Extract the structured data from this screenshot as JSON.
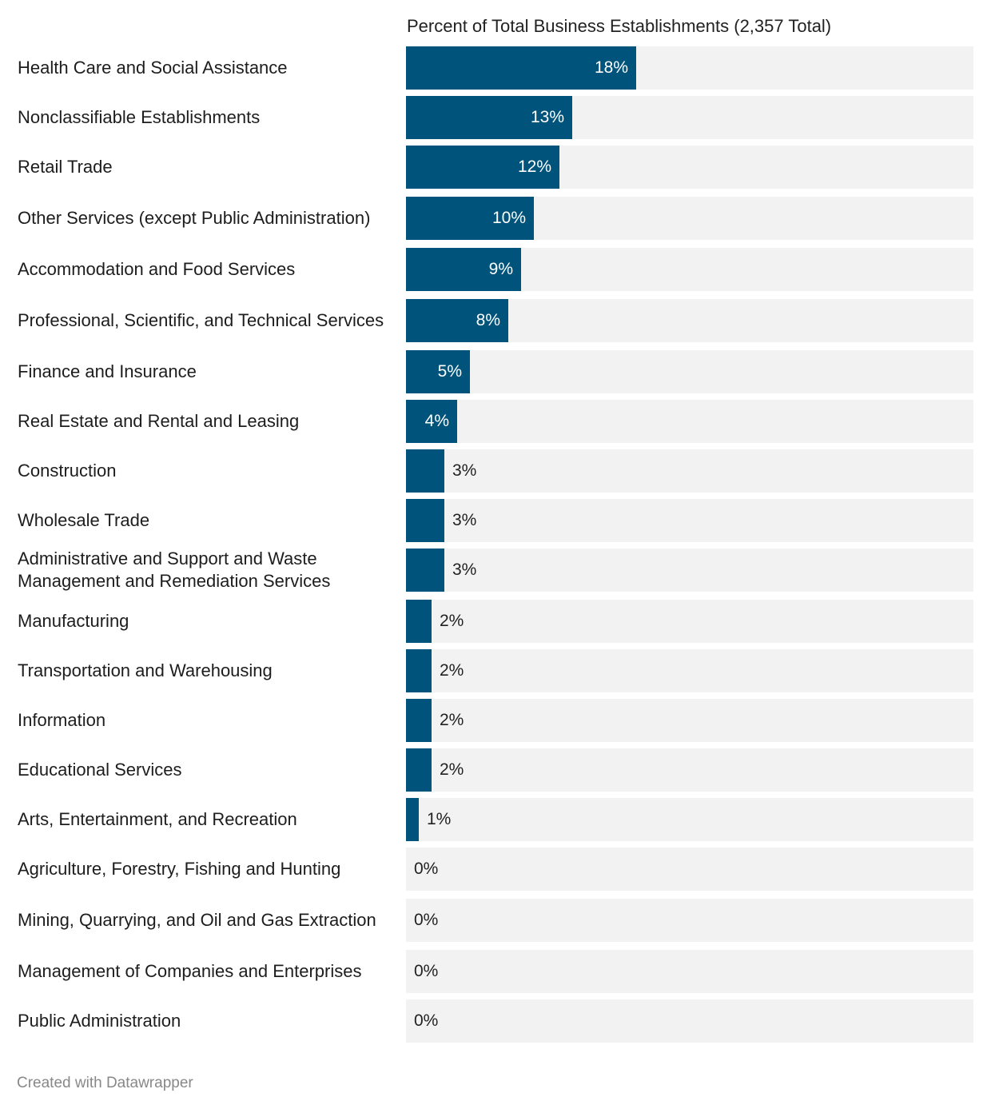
{
  "chart_data": {
    "type": "bar",
    "orientation": "horizontal",
    "title": "Percent of Total Business Establishments (2,357 Total)",
    "xlim": [
      0,
      44.375
    ],
    "bar_color": "#00547b",
    "track_color": "#f2f2f2",
    "categories": [
      "Health Care and Social Assistance",
      "Nonclassifiable Establishments",
      "Retail Trade",
      "Other Services (except Public Administration)",
      "Accommodation and Food Services",
      "Professional, Scientific, and Technical Services",
      "Finance and Insurance",
      "Real Estate and Rental and Leasing",
      "Construction",
      "Wholesale Trade",
      "Administrative and Support and Waste Management and Remediation Services",
      "Manufacturing",
      "Transportation and Warehousing",
      "Information",
      "Educational Services",
      "Arts, Entertainment, and Recreation",
      "Agriculture, Forestry, Fishing and Hunting",
      "Mining, Quarrying, and Oil and Gas Extraction",
      "Management of Companies and Enterprises",
      "Public Administration"
    ],
    "values": [
      18,
      13,
      12,
      10,
      9,
      8,
      5,
      4,
      3,
      3,
      3,
      2,
      2,
      2,
      2,
      1,
      0,
      0,
      0,
      0
    ],
    "value_labels": [
      "18%",
      "13%",
      "12%",
      "10%",
      "9%",
      "8%",
      "5%",
      "4%",
      "3%",
      "3%",
      "3%",
      "2%",
      "2%",
      "2%",
      "2%",
      "1%",
      "0%",
      "0%",
      "0%",
      "0%"
    ]
  },
  "footer": "Created with Datawrapper"
}
